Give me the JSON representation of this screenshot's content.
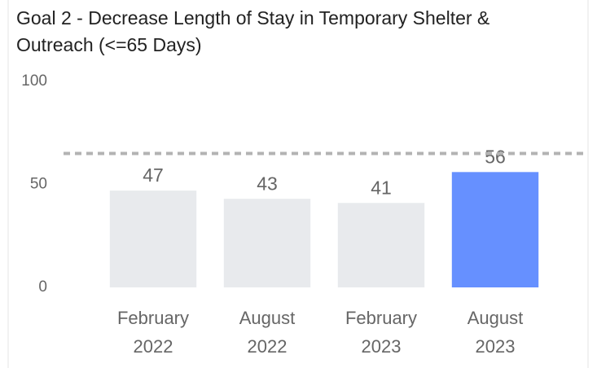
{
  "chart_data": {
    "type": "bar",
    "title": "Goal 2 - Decrease Length of Stay in Temporary Shelter & Outreach (<=65 Days)",
    "categories": [
      "February 2022",
      "August 2022",
      "February 2023",
      "August 2023"
    ],
    "values": [
      47,
      43,
      41,
      56
    ],
    "colors": [
      "#e8eaed",
      "#e8eaed",
      "#e8eaed",
      "#6690ff"
    ],
    "ylim": [
      0,
      100
    ],
    "yticks": [
      0,
      50,
      100
    ],
    "reference_line": {
      "value": 65,
      "color": "#b3b3b3"
    }
  }
}
